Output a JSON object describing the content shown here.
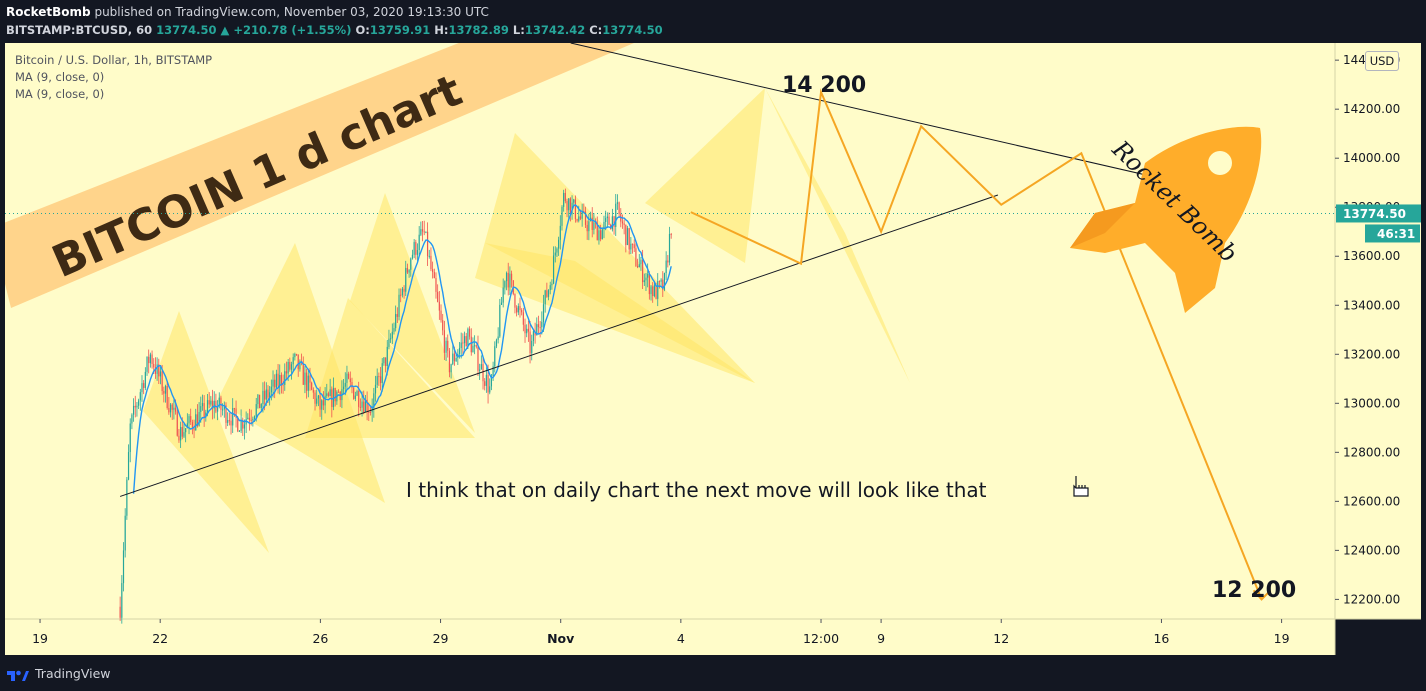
{
  "header": {
    "author": "RocketBomb",
    "published_text": "published on TradingView.com, November 03, 2020 19:13:30 UTC",
    "symbol": "BITSTAMP:BTCUSD, 60",
    "change": "+210.78 (+1.55%)",
    "last_price": "13774.50",
    "o_label": "O:",
    "o_value": "13759.91",
    "h_label": "H:",
    "h_value": "13782.89",
    "l_label": "L:",
    "l_value": "13742.42",
    "c_label": "C:",
    "c_value": "13774.50"
  },
  "legend": {
    "title": "Bitcoin / U.S. Dollar, 1h, BITSTAMP",
    "ma1": "MA (9, close, 0)",
    "ma2": "MA (9, close, 0)"
  },
  "currency": "USD",
  "price_tag": "13774.50",
  "countdown_tag": "46:31",
  "footer": {
    "brand": "TradingView"
  },
  "colors": {
    "background": "#fffcc9",
    "candle_up": "#26a69a",
    "candle_down": "#ef5350",
    "ma_line": "#2196f3",
    "projection": "#f5a623",
    "triangle_fill": "#ffe566",
    "banner": "#ffcc80",
    "price_tag": "#26a69a"
  },
  "chart_data": {
    "type": "candlestick",
    "title": "Bitcoin / U.S. Dollar, 1h, BITSTAMP",
    "ylabel": "USD",
    "ylim": [
      12120,
      14470
    ],
    "y_ticks": [
      12200,
      12400,
      12600,
      12800,
      13000,
      13200,
      13400,
      13600,
      13800,
      14000,
      14200,
      14400
    ],
    "y_tick_labels": [
      "12200.00",
      "12400.00",
      "12600.00",
      "12800.00",
      "13000.00",
      "13200.00",
      "13400.00",
      "13600.00",
      "13800.00",
      "14000.00",
      "14200.00",
      "14400.00"
    ],
    "x_ticks": [
      "19",
      "22",
      "26",
      "29",
      "Nov",
      "4",
      "12:00",
      "9",
      "12",
      "16",
      "19"
    ],
    "x_range": [
      "2020-10-18T03:00",
      "2020-11-20T08:00"
    ],
    "x_tick_dates": [
      "2020-10-19",
      "2020-10-22",
      "2020-10-26",
      "2020-10-29",
      "2020-11-01",
      "2020-11-04",
      "2020-11-07T12:00",
      "2020-11-09",
      "2020-11-12",
      "2020-11-16",
      "2020-11-19"
    ],
    "price_key_points": [
      {
        "date": "2020-10-21T00:00",
        "price": 12170
      },
      {
        "date": "2020-10-21T06:00",
        "price": 12900
      },
      {
        "date": "2020-10-21T18:00",
        "price": 13200
      },
      {
        "date": "2020-10-22T12:00",
        "price": 12880
      },
      {
        "date": "2020-10-23T08:00",
        "price": 13000
      },
      {
        "date": "2020-10-24T00:00",
        "price": 12920
      },
      {
        "date": "2020-10-24T12:00",
        "price": 13000
      },
      {
        "date": "2020-10-25T09:00",
        "price": 13170
      },
      {
        "date": "2020-10-26T00:00",
        "price": 12980
      },
      {
        "date": "2020-10-26T16:00",
        "price": 13080
      },
      {
        "date": "2020-10-27T06:00",
        "price": 12980
      },
      {
        "date": "2020-10-27T16:00",
        "price": 13200
      },
      {
        "date": "2020-10-28T06:00",
        "price": 13600
      },
      {
        "date": "2020-10-28T14:00",
        "price": 13700
      },
      {
        "date": "2020-10-29T05:00",
        "price": 13150
      },
      {
        "date": "2020-10-29T16:00",
        "price": 13280
      },
      {
        "date": "2020-10-30T06:00",
        "price": 13050
      },
      {
        "date": "2020-10-30T15:00",
        "price": 13550
      },
      {
        "date": "2020-10-31T06:00",
        "price": 13220
      },
      {
        "date": "2020-10-31T18:00",
        "price": 13500
      },
      {
        "date": "2020-11-01T02:00",
        "price": 13850
      },
      {
        "date": "2020-11-01T12:00",
        "price": 13750
      },
      {
        "date": "2020-11-02T00:00",
        "price": 13700
      },
      {
        "date": "2020-11-02T10:00",
        "price": 13780
      },
      {
        "date": "2020-11-02T20:00",
        "price": 13600
      },
      {
        "date": "2020-11-03T08:00",
        "price": 13450
      },
      {
        "date": "2020-11-03T14:00",
        "price": 13480
      },
      {
        "date": "2020-11-03T19:00",
        "price": 13774.5
      }
    ],
    "projection_path": [
      {
        "date": "2020-11-04T06:00",
        "price": 13780
      },
      {
        "date": "2020-11-07T00:00",
        "price": 13570
      },
      {
        "date": "2020-11-07T12:00",
        "price": 14270
      },
      {
        "date": "2020-11-09T00:00",
        "price": 13700
      },
      {
        "date": "2020-11-10T00:00",
        "price": 14130
      },
      {
        "date": "2020-11-12T00:00",
        "price": 13810
      },
      {
        "date": "2020-11-14T00:00",
        "price": 14020
      },
      {
        "date": "2020-11-18T12:00",
        "price": 12200
      }
    ],
    "trend_lines": [
      {
        "from": {
          "date": "2020-10-21T00:00",
          "price": 12620
        },
        "to": {
          "date": "2020-11-11T22:00",
          "price": 13850
        }
      },
      {
        "from": {
          "date": "2020-11-01T06:00",
          "price": 14470
        },
        "to": {
          "date": "2020-11-17T06:00",
          "price": 13870
        }
      }
    ],
    "annotations": {
      "banner": "BITCOIN    1 d chart",
      "target_high": "14 200",
      "target_low": "12 200",
      "comment": "I think that on daily chart the next move will look like that",
      "signature": "Rocket Bomb"
    },
    "last_value": 13774.5,
    "grid": false
  }
}
